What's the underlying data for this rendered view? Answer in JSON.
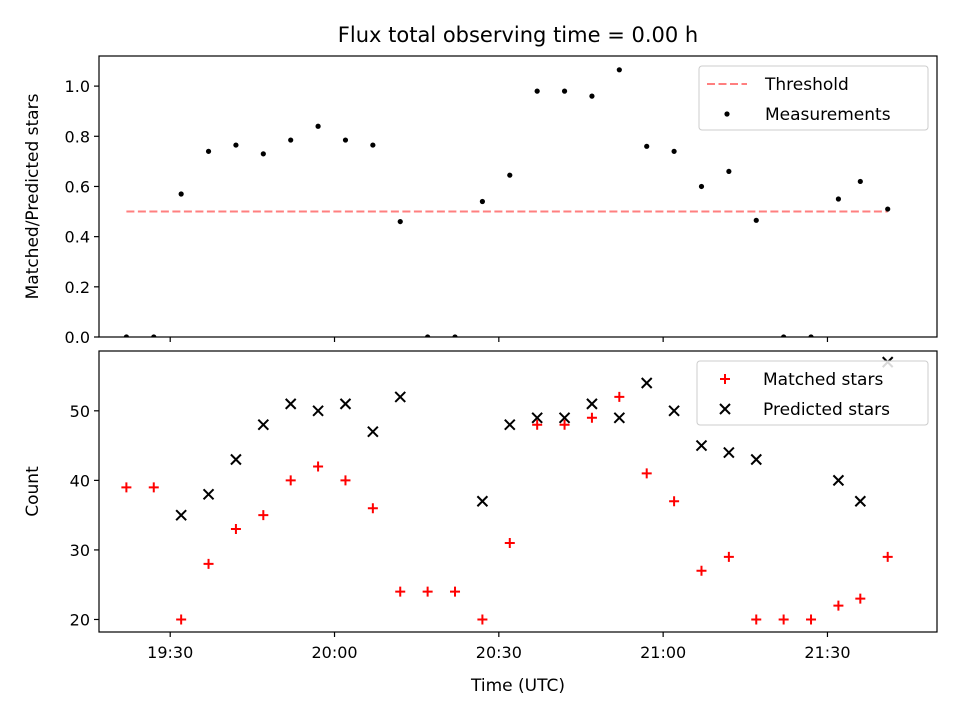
{
  "chart_data": [
    {
      "type": "scatter",
      "title": "Flux total observing time = 0.00 h",
      "xlabel": "",
      "ylabel": "Matched/Predicted stars",
      "xlim": [
        "19:17",
        "21:50"
      ],
      "ylim": [
        0,
        1.12
      ],
      "yticks": [
        "0.0",
        "0.2",
        "0.4",
        "0.6",
        "0.8",
        "1.0"
      ],
      "grid": false,
      "legend_position": "top-right",
      "series": [
        {
          "name": "Threshold",
          "kind": "line",
          "style": "dashed",
          "color": "#ff7f7f",
          "x": [
            "19:22",
            "21:41"
          ],
          "y": [
            0.5,
            0.5
          ]
        },
        {
          "name": "Measurements",
          "kind": "points",
          "color": "#000000",
          "x": [
            "19:22",
            "19:27",
            "19:32",
            "19:37",
            "19:42",
            "19:47",
            "19:52",
            "19:57",
            "20:02",
            "20:07",
            "20:12",
            "20:17",
            "20:22",
            "20:27",
            "20:32",
            "20:37",
            "20:42",
            "20:47",
            "20:52",
            "20:57",
            "21:02",
            "21:07",
            "21:12",
            "21:17",
            "21:22",
            "21:27",
            "21:32",
            "21:36",
            "21:41"
          ],
          "y": [
            0.0,
            0.0,
            0.57,
            0.74,
            0.765,
            0.73,
            0.785,
            0.84,
            0.785,
            0.765,
            0.46,
            0.0,
            0.0,
            0.54,
            0.645,
            0.98,
            0.98,
            0.96,
            1.065,
            0.76,
            0.74,
            0.6,
            0.66,
            0.465,
            0.0,
            0.0,
            0.55,
            0.62,
            0.51
          ]
        }
      ]
    },
    {
      "type": "scatter",
      "title": "",
      "xlabel": "Time (UTC)",
      "ylabel": "Count",
      "xlim": [
        "19:17",
        "21:50"
      ],
      "ylim": [
        18.2,
        58.6
      ],
      "xticks": [
        "19:30",
        "20:00",
        "20:30",
        "21:00",
        "21:30"
      ],
      "yticks": [
        "20",
        "30",
        "40",
        "50"
      ],
      "grid": false,
      "legend_position": "top-right",
      "series": [
        {
          "name": "Matched stars",
          "marker": "plus",
          "color": "#ff0000",
          "x": [
            "19:22",
            "19:27",
            "19:32",
            "19:37",
            "19:42",
            "19:47",
            "19:52",
            "19:57",
            "20:02",
            "20:07",
            "20:12",
            "20:17",
            "20:22",
            "20:27",
            "20:32",
            "20:37",
            "20:42",
            "20:47",
            "20:52",
            "20:57",
            "21:02",
            "21:07",
            "21:12",
            "21:17",
            "21:22",
            "21:27",
            "21:32",
            "21:36",
            "21:41"
          ],
          "y": [
            39,
            39,
            20,
            28,
            33,
            35,
            40,
            42,
            40,
            36,
            24,
            24,
            24,
            20,
            31,
            48,
            48,
            49,
            52,
            41,
            37,
            27,
            29,
            20,
            20,
            20,
            22,
            23,
            29
          ]
        },
        {
          "name": "Predicted stars",
          "marker": "x",
          "color": "#000000",
          "x": [
            "19:32",
            "19:37",
            "19:42",
            "19:47",
            "19:52",
            "19:57",
            "20:02",
            "20:07",
            "20:12",
            "20:27",
            "20:32",
            "20:37",
            "20:42",
            "20:47",
            "20:52",
            "20:57",
            "21:02",
            "21:07",
            "21:12",
            "21:17",
            "21:32",
            "21:36",
            "21:41"
          ],
          "y": [
            35,
            38,
            43,
            48,
            51,
            50,
            51,
            47,
            52,
            37,
            48,
            49,
            49,
            51,
            49,
            54,
            50,
            45,
            44,
            43,
            40,
            37,
            57
          ]
        }
      ]
    }
  ]
}
